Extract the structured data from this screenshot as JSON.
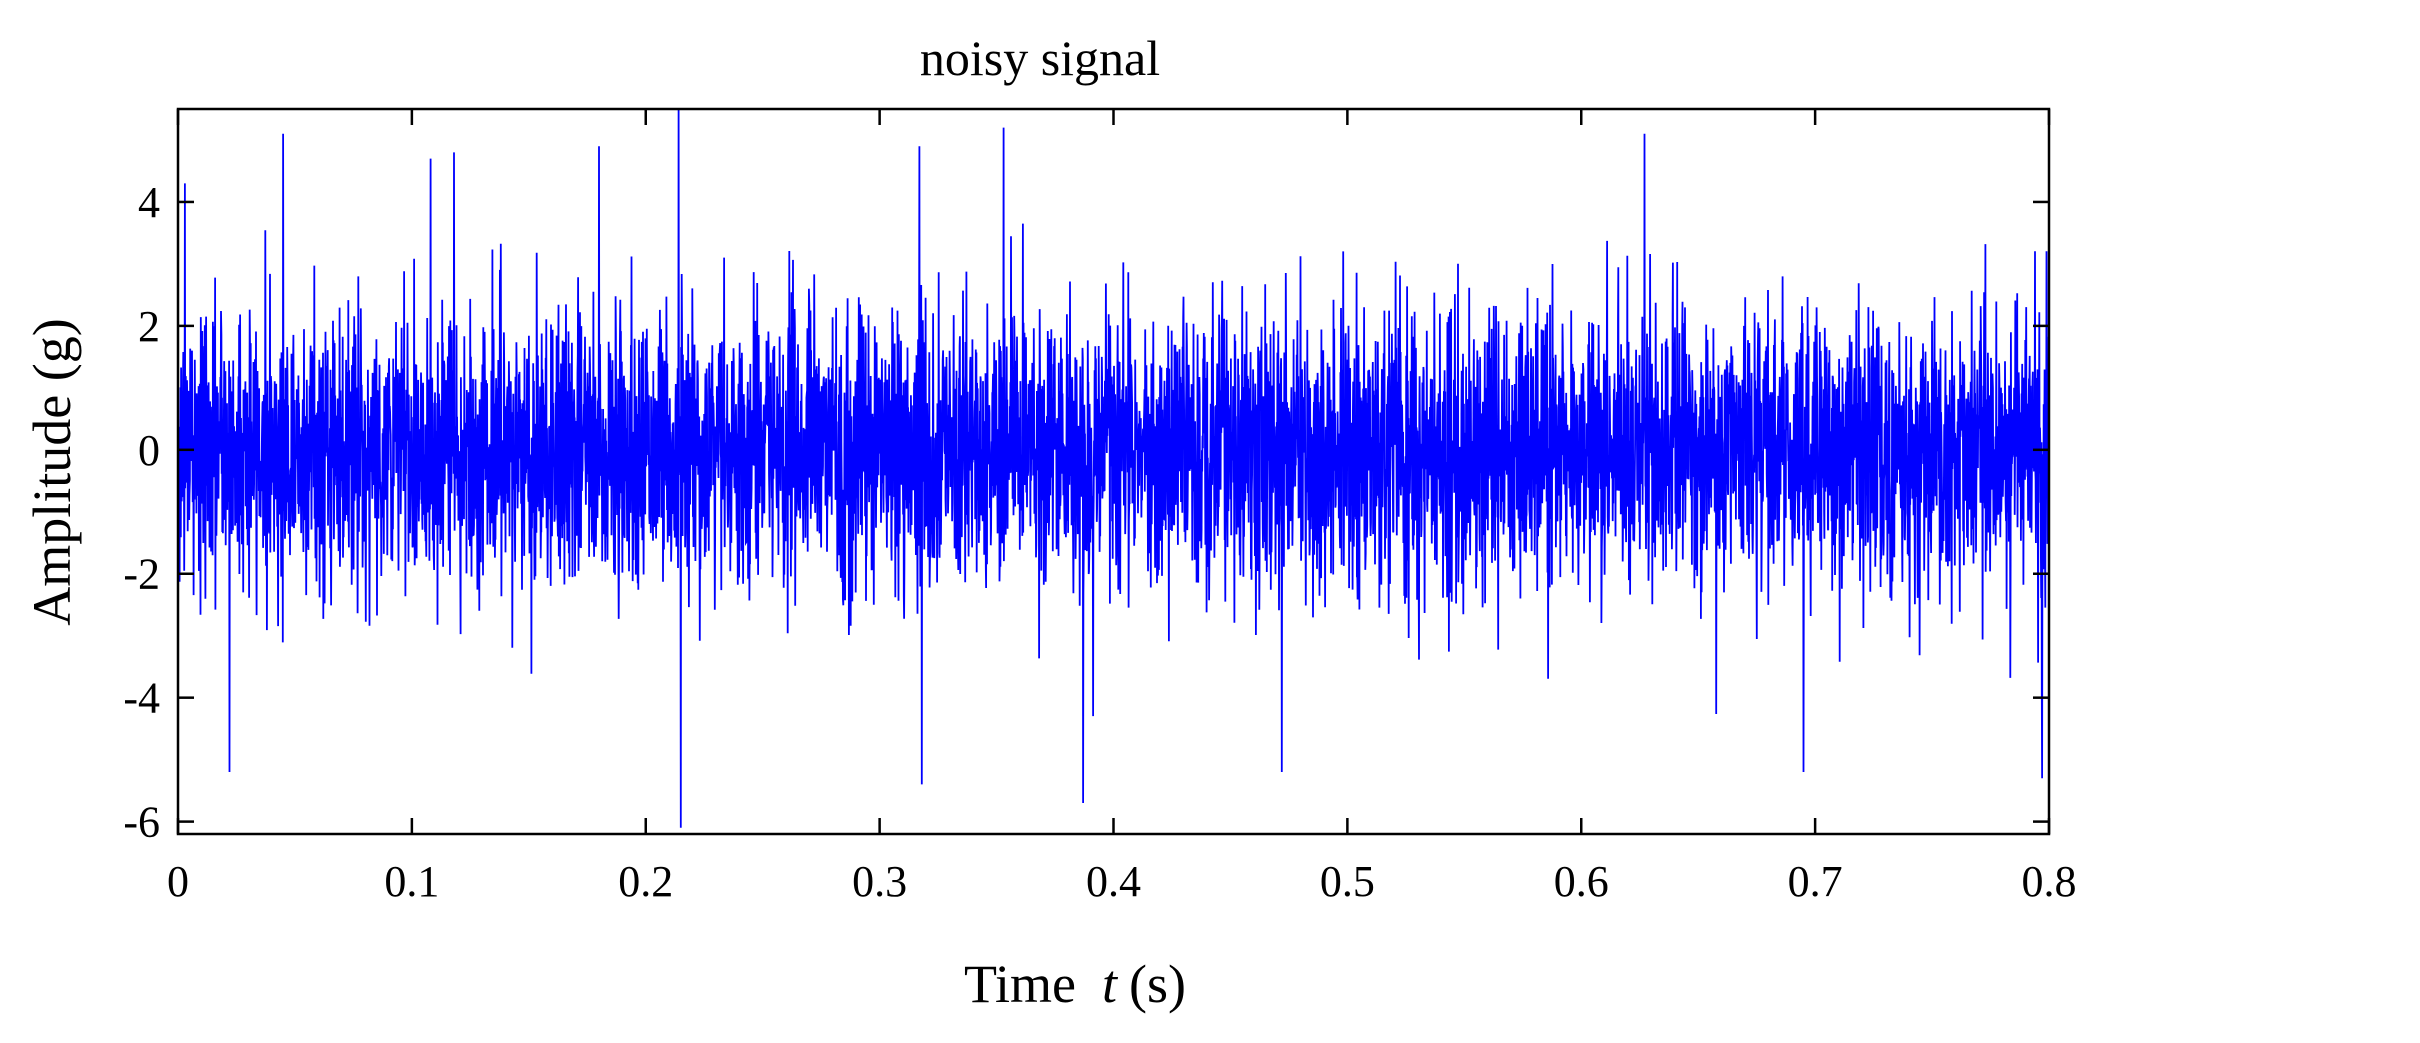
{
  "chart_data": {
    "type": "line",
    "title": "noisy signal",
    "xlabel_main": "Time",
    "xlabel_var": "t",
    "xlabel_unit": "(s)",
    "ylabel": "Amplitude (g)",
    "xlim": [
      0,
      0.8
    ],
    "ylim": [
      -6.2,
      5.5
    ],
    "xticks": [
      0,
      0.1,
      0.2,
      0.3,
      0.4,
      0.5,
      0.6,
      0.7,
      0.8
    ],
    "xtick_labels": [
      "0",
      "0.1",
      "0.2",
      "0.3",
      "0.4",
      "0.5",
      "0.6",
      "0.7",
      "0.8"
    ],
    "yticks": [
      4,
      2,
      0,
      -2,
      -4,
      -6
    ],
    "ytick_labels": [
      "4",
      "2",
      "0",
      "-2",
      "-4",
      "-6"
    ],
    "grid": false,
    "legend": "none",
    "series": [
      {
        "color": "#0000ff",
        "description_of_values": "dense random vibration noise, roughly Gaussian, std about 1.1 g",
        "sample_count": 6000,
        "noise_std": 1.1,
        "peak_values": [
          {
            "x": 0.003,
            "y": 4.3
          },
          {
            "x": 0.022,
            "y": -5.2
          },
          {
            "x": 0.045,
            "y": 5.1
          },
          {
            "x": 0.108,
            "y": 4.7
          },
          {
            "x": 0.118,
            "y": 4.8
          },
          {
            "x": 0.18,
            "y": 4.9
          },
          {
            "x": 0.214,
            "y": 5.6
          },
          {
            "x": 0.215,
            "y": -6.1
          },
          {
            "x": 0.317,
            "y": 4.9
          },
          {
            "x": 0.318,
            "y": -5.4
          },
          {
            "x": 0.353,
            "y": 5.2
          },
          {
            "x": 0.387,
            "y": -5.7
          },
          {
            "x": 0.472,
            "y": -5.2
          },
          {
            "x": 0.627,
            "y": 5.1
          },
          {
            "x": 0.695,
            "y": -5.2
          },
          {
            "x": 0.797,
            "y": -5.3
          }
        ]
      }
    ]
  }
}
